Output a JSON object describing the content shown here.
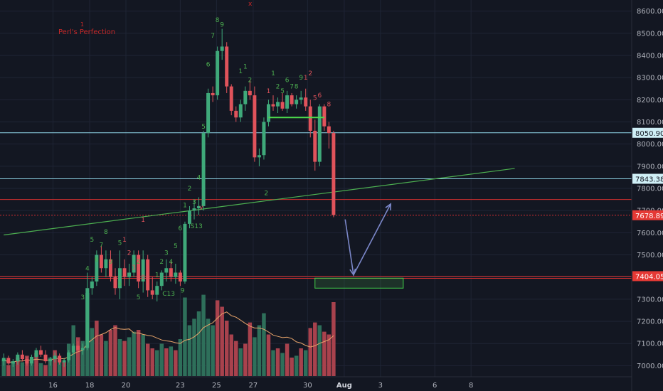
{
  "colors": {
    "background": "#131722",
    "grid": "#1f2535",
    "up": "#3fa97a",
    "down": "#e0535b",
    "vol_up": "#2e6f5a",
    "vol_down": "#a8424d",
    "ma": "#e8a46a",
    "trend": "#4caf50",
    "cyan": "#8fd6e8",
    "red_level": "#d32f2f",
    "arrow": "#7b87c9",
    "tag_cyan_bg": "#cfeff6",
    "tag_red_bg": "#e53935"
  },
  "chart_data": {
    "type": "candlestick",
    "annotation_title": "Perl's Perfection",
    "annotation_mark": "1",
    "top_mark": "x",
    "y_axis": {
      "min": 6950,
      "max": 8650,
      "ticks": [
        "7000.00",
        "7100.00",
        "7200.00",
        "7300.00",
        "7400.00",
        "7500.00",
        "7600.00",
        "7700.00",
        "7800.00",
        "7900.00",
        "8000.00",
        "8100.00",
        "8200.00",
        "8300.00",
        "8400.00",
        "8500.00",
        "8600.00"
      ]
    },
    "x_axis": {
      "labels": [
        {
          "text": "16",
          "slot": 10.6
        },
        {
          "text": "18",
          "slot": 18.5
        },
        {
          "text": "20",
          "slot": 26.3
        },
        {
          "text": "23",
          "slot": 38.0
        },
        {
          "text": "25",
          "slot": 45.8
        },
        {
          "text": "27",
          "slot": 53.7
        },
        {
          "text": "30",
          "slot": 65.4
        },
        {
          "text": "Aug",
          "slot": 73.3,
          "bold": true
        },
        {
          "text": "3",
          "slot": 81.1
        },
        {
          "text": "6",
          "slot": 92.8
        },
        {
          "text": "8",
          "slot": 100.6
        }
      ]
    },
    "slot_count": 110,
    "candles": [
      [
        7020,
        7055,
        7000,
        7035
      ],
      [
        7035,
        7045,
        7005,
        7010
      ],
      [
        7010,
        7030,
        6995,
        7020
      ],
      [
        7020,
        7060,
        7005,
        7050
      ],
      [
        7050,
        7070,
        7020,
        7030
      ],
      [
        7030,
        7040,
        7000,
        7010
      ],
      [
        7010,
        7050,
        7000,
        7040
      ],
      [
        7040,
        7080,
        7030,
        7070
      ],
      [
        7070,
        7090,
        7040,
        7050
      ],
      [
        7050,
        7070,
        7010,
        7020
      ],
      [
        7020,
        7040,
        7000,
        7030
      ],
      [
        7030,
        7060,
        7015,
        7045
      ],
      [
        7045,
        7055,
        7005,
        7015
      ],
      [
        7015,
        7035,
        6995,
        7025
      ],
      [
        7025,
        7070,
        7015,
        7060
      ],
      [
        7060,
        7100,
        7050,
        7090
      ],
      [
        7090,
        7110,
        7060,
        7070
      ],
      [
        7070,
        7100,
        7050,
        7080
      ],
      [
        7080,
        7420,
        7070,
        7350
      ],
      [
        7350,
        7400,
        7320,
        7380
      ],
      [
        7380,
        7520,
        7360,
        7500
      ],
      [
        7500,
        7540,
        7420,
        7440
      ],
      [
        7440,
        7520,
        7400,
        7480
      ],
      [
        7480,
        7520,
        7380,
        7400
      ],
      [
        7400,
        7440,
        7320,
        7350
      ],
      [
        7350,
        7520,
        7300,
        7440
      ],
      [
        7440,
        7480,
        7360,
        7400
      ],
      [
        7400,
        7460,
        7360,
        7420
      ],
      [
        7420,
        7520,
        7400,
        7500
      ],
      [
        7500,
        7520,
        7350,
        7380
      ],
      [
        7380,
        7520,
        7330,
        7480
      ],
      [
        7480,
        7500,
        7310,
        7340
      ],
      [
        7340,
        7400,
        7300,
        7320
      ],
      [
        7320,
        7380,
        7290,
        7360
      ],
      [
        7360,
        7430,
        7340,
        7420
      ],
      [
        7420,
        7480,
        7380,
        7440
      ],
      [
        7440,
        7470,
        7380,
        7400
      ],
      [
        7400,
        7460,
        7370,
        7420
      ],
      [
        7420,
        7430,
        7360,
        7380
      ],
      [
        7380,
        7650,
        7370,
        7640
      ],
      [
        7640,
        7720,
        7620,
        7700
      ],
      [
        7700,
        7750,
        7660,
        7710
      ],
      [
        7710,
        7760,
        7680,
        7720
      ],
      [
        7720,
        8060,
        7700,
        8050
      ],
      [
        8050,
        8250,
        8030,
        8230
      ],
      [
        8230,
        8260,
        8190,
        8220
      ],
      [
        8220,
        8440,
        8200,
        8420
      ],
      [
        8420,
        8520,
        8380,
        8440
      ],
      [
        8440,
        8460,
        8230,
        8260
      ],
      [
        8260,
        8270,
        8130,
        8150
      ],
      [
        8150,
        8170,
        8100,
        8120
      ],
      [
        8120,
        8200,
        8100,
        8180
      ],
      [
        8180,
        8260,
        8150,
        8240
      ],
      [
        8240,
        8290,
        8200,
        8220
      ],
      [
        8220,
        8260,
        7920,
        7940
      ],
      [
        7940,
        7980,
        7900,
        7950
      ],
      [
        7950,
        8120,
        7930,
        8100
      ],
      [
        8100,
        8200,
        8080,
        8180
      ],
      [
        8180,
        8220,
        8150,
        8170
      ],
      [
        8170,
        8210,
        8140,
        8190
      ],
      [
        8190,
        8230,
        8150,
        8160
      ],
      [
        8160,
        8240,
        8140,
        8220
      ],
      [
        8220,
        8230,
        8170,
        8180
      ],
      [
        8180,
        8220,
        8160,
        8200
      ],
      [
        8200,
        8240,
        8180,
        8210
      ],
      [
        8210,
        8250,
        8150,
        8170
      ],
      [
        8170,
        8200,
        8030,
        8060
      ],
      [
        8060,
        8110,
        7880,
        7920
      ],
      [
        7920,
        8180,
        7900,
        8170
      ],
      [
        8170,
        8180,
        8060,
        8080
      ],
      [
        8080,
        8100,
        7980,
        8050
      ],
      [
        8050,
        8060,
        7670,
        7680
      ]
    ],
    "volumes": [
      [
        0.18,
        1
      ],
      [
        0.12,
        0
      ],
      [
        0.16,
        1
      ],
      [
        0.2,
        0
      ],
      [
        0.15,
        1
      ],
      [
        0.22,
        0
      ],
      [
        0.18,
        1
      ],
      [
        0.25,
        0
      ],
      [
        0.14,
        1
      ],
      [
        0.12,
        0
      ],
      [
        0.2,
        1
      ],
      [
        0.28,
        0
      ],
      [
        0.18,
        1
      ],
      [
        0.15,
        0
      ],
      [
        0.35,
        1
      ],
      [
        0.55,
        1
      ],
      [
        0.42,
        0
      ],
      [
        0.38,
        1
      ],
      [
        0.9,
        1
      ],
      [
        0.52,
        1
      ],
      [
        0.6,
        0
      ],
      [
        0.45,
        0
      ],
      [
        0.38,
        1
      ],
      [
        0.5,
        0
      ],
      [
        0.55,
        0
      ],
      [
        0.4,
        1
      ],
      [
        0.38,
        0
      ],
      [
        0.42,
        1
      ],
      [
        0.48,
        1
      ],
      [
        0.5,
        0
      ],
      [
        0.45,
        1
      ],
      [
        0.35,
        0
      ],
      [
        0.3,
        0
      ],
      [
        0.28,
        1
      ],
      [
        0.35,
        1
      ],
      [
        0.3,
        0
      ],
      [
        0.32,
        1
      ],
      [
        0.28,
        0
      ],
      [
        0.4,
        1
      ],
      [
        0.85,
        1
      ],
      [
        0.55,
        1
      ],
      [
        0.62,
        1
      ],
      [
        0.7,
        1
      ],
      [
        0.88,
        1
      ],
      [
        0.62,
        1
      ],
      [
        0.55,
        1
      ],
      [
        0.82,
        0
      ],
      [
        0.75,
        0
      ],
      [
        0.6,
        0
      ],
      [
        0.45,
        0
      ],
      [
        0.38,
        0
      ],
      [
        0.3,
        1
      ],
      [
        0.35,
        0
      ],
      [
        0.58,
        0
      ],
      [
        0.42,
        1
      ],
      [
        0.55,
        1
      ],
      [
        0.68,
        1
      ],
      [
        0.45,
        0
      ],
      [
        0.28,
        1
      ],
      [
        0.3,
        0
      ],
      [
        0.25,
        1
      ],
      [
        0.35,
        0
      ],
      [
        0.2,
        0
      ],
      [
        0.22,
        1
      ],
      [
        0.3,
        0
      ],
      [
        0.28,
        1
      ],
      [
        0.52,
        0
      ],
      [
        0.58,
        0
      ],
      [
        0.55,
        1
      ],
      [
        0.48,
        0
      ],
      [
        0.45,
        0
      ],
      [
        0.8,
        0
      ]
    ],
    "levels": [
      {
        "name": "cyan-high",
        "price": 8050.9,
        "color": "cyan",
        "tag": "8050.90",
        "dashed": false
      },
      {
        "name": "cyan-low",
        "price": 7843.38,
        "color": "cyan",
        "tag": "7843.38",
        "dashed": false
      },
      {
        "name": "red-mid",
        "price": 7750,
        "color": "red_level",
        "tag": "",
        "dashed": false
      },
      {
        "name": "red-current",
        "price": 7678.89,
        "color": "red_level",
        "tag": "7678.89",
        "dashed": true
      },
      {
        "name": "red-support",
        "price": 7404.05,
        "color": "red_level",
        "tag": "7404.05",
        "dashed": false,
        "double": true
      }
    ],
    "trendline": {
      "from": {
        "slot": 0,
        "price": 7590
      },
      "to": {
        "slot": 110,
        "price": 7890
      }
    },
    "green_segment": {
      "from_slot": 57,
      "to_slot": 69,
      "price": 8120
    },
    "target_box": {
      "from_slot": 67,
      "to_slot": 86,
      "top": 7395,
      "bottom": 7350
    },
    "arrow_path": [
      {
        "slot": 73.5,
        "price": 7660
      },
      {
        "slot": 75.3,
        "price": 7410
      },
      {
        "slot": 83.3,
        "price": 7730
      }
    ],
    "sequential_labels": [
      {
        "slot": 17,
        "price": 7300,
        "text": "3",
        "color": "up"
      },
      {
        "slot": 18,
        "price": 7430,
        "text": "4",
        "color": "up"
      },
      {
        "slot": 19,
        "price": 7560,
        "text": "5",
        "color": "up"
      },
      {
        "slot": 20,
        "price": 7470,
        "text": "6",
        "color": "up"
      },
      {
        "slot": 21,
        "price": 7535,
        "text": "7",
        "color": "up"
      },
      {
        "slot": 22,
        "price": 7595,
        "text": "8",
        "color": "up"
      },
      {
        "slot": 23,
        "price": 7460,
        "text": "9",
        "color": "up"
      },
      {
        "slot": 24,
        "price": 7385,
        "text": "4",
        "color": "down"
      },
      {
        "slot": 25,
        "price": 7545,
        "text": "5",
        "color": "up"
      },
      {
        "slot": 26,
        "price": 7560,
        "text": "1",
        "color": "down"
      },
      {
        "slot": 27,
        "price": 7500,
        "text": "2",
        "color": "down"
      },
      {
        "slot": 28,
        "price": 7435,
        "text": "3",
        "color": "down"
      },
      {
        "slot": 29,
        "price": 7460,
        "text": "2",
        "color": "up"
      },
      {
        "slot": 30,
        "price": 7390,
        "text": "8",
        "color": "down"
      },
      {
        "slot": 33,
        "price": 7400,
        "text": "1",
        "color": "up"
      },
      {
        "slot": 34,
        "price": 7460,
        "text": "2",
        "color": "up"
      },
      {
        "slot": 35,
        "price": 7500,
        "text": "3",
        "color": "up"
      },
      {
        "slot": 36,
        "price": 7460,
        "text": "4",
        "color": "up"
      },
      {
        "slot": 37,
        "price": 7530,
        "text": "5",
        "color": "up"
      },
      {
        "slot": 38,
        "price": 7610,
        "text": "6",
        "color": "up"
      },
      {
        "slot": 39,
        "price": 7715,
        "text": "1",
        "color": "up"
      },
      {
        "slot": 40,
        "price": 7790,
        "text": "2",
        "color": "up"
      },
      {
        "slot": 41,
        "price": 7730,
        "text": "3",
        "color": "up"
      },
      {
        "slot": 42,
        "price": 7840,
        "text": "4",
        "color": "up"
      },
      {
        "slot": 43,
        "price": 8070,
        "text": "5",
        "color": "up"
      },
      {
        "slot": 44,
        "price": 8350,
        "text": "6",
        "color": "up"
      },
      {
        "slot": 45,
        "price": 8480,
        "text": "7",
        "color": "up"
      },
      {
        "slot": 46,
        "price": 8550,
        "text": "8",
        "color": "up"
      },
      {
        "slot": 47,
        "price": 8530,
        "text": "9",
        "color": "up"
      },
      {
        "slot": 48,
        "price": 8310,
        "text": "3",
        "color": "down"
      },
      {
        "slot": 49,
        "price": 8185,
        "text": "2",
        "color": "down"
      },
      {
        "slot": 51,
        "price": 8320,
        "text": "1",
        "color": "up"
      },
      {
        "slot": 52,
        "price": 8340,
        "text": "1",
        "color": "up"
      },
      {
        "slot": 53,
        "price": 8280,
        "text": "2",
        "color": "up"
      },
      {
        "slot": 54,
        "price": 8020,
        "text": "3",
        "color": "down"
      },
      {
        "slot": 57,
        "price": 8230,
        "text": "1",
        "color": "down"
      },
      {
        "slot": 58,
        "price": 8310,
        "text": "1",
        "color": "up"
      },
      {
        "slot": 59,
        "price": 8250,
        "text": "2",
        "color": "up"
      },
      {
        "slot": 60,
        "price": 8230,
        "text": "5",
        "color": "up"
      },
      {
        "slot": 61,
        "price": 8280,
        "text": "6",
        "color": "up"
      },
      {
        "slot": 62,
        "price": 8250,
        "text": "7",
        "color": "up"
      },
      {
        "slot": 63,
        "price": 8250,
        "text": "8",
        "color": "up"
      },
      {
        "slot": 64,
        "price": 8290,
        "text": "9",
        "color": "up"
      },
      {
        "slot": 65,
        "price": 8290,
        "text": "1",
        "color": "down"
      },
      {
        "slot": 66,
        "price": 8310,
        "text": "2",
        "color": "down"
      },
      {
        "slot": 67,
        "price": 8200,
        "text": "5",
        "color": "down"
      },
      {
        "slot": 68,
        "price": 8210,
        "text": "6",
        "color": "down"
      },
      {
        "slot": 69,
        "price": 8140,
        "text": "7",
        "color": "down"
      },
      {
        "slot": 70,
        "price": 8170,
        "text": "8",
        "color": "down"
      },
      {
        "slot": 71,
        "price": 8010,
        "text": "9",
        "color": "down"
      }
    ],
    "extra_labels": [
      {
        "slot": 30,
        "price": 7650,
        "text": "1",
        "color": "down"
      },
      {
        "slot": 41.5,
        "price": 7620,
        "text": "S13",
        "color": "up"
      },
      {
        "slot": 35.5,
        "price": 7315,
        "text": "C13",
        "color": "up"
      },
      {
        "slot": 25,
        "price": 7360,
        "text": "5",
        "color": "up"
      },
      {
        "slot": 29,
        "price": 7300,
        "text": "5",
        "color": "up"
      },
      {
        "slot": 38.5,
        "price": 7330,
        "text": "9",
        "color": "up"
      },
      {
        "slot": 56.5,
        "price": 7770,
        "text": "2",
        "color": "up"
      },
      {
        "slot": 42.5,
        "price": 7705,
        "text": "v",
        "color": "down"
      }
    ]
  }
}
